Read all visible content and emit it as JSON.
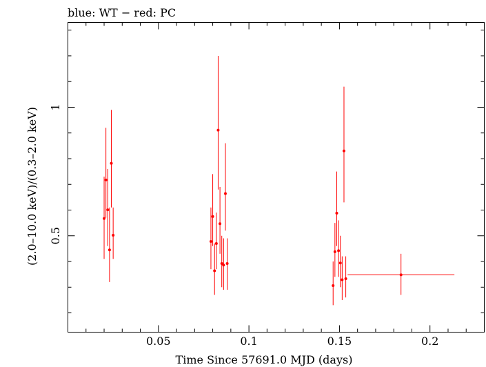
{
  "chart_data": {
    "type": "scatter",
    "title": "blue: WT − red: PC",
    "xlabel": "Time Since 57691.0 MJD (days)",
    "ylabel": "(2.0–10.0 keV)/(0.3–2.0 keV)",
    "xlim": [
      0.0,
      0.23
    ],
    "ylim": [
      0.125,
      1.33
    ],
    "x_ticks": [
      0.05,
      0.1,
      0.15,
      0.2
    ],
    "x_tick_labels": [
      "0.05",
      "0.1",
      "0.15",
      "0.2"
    ],
    "y_ticks": [
      0.5,
      1.0
    ],
    "y_tick_labels": [
      "0.5",
      "1"
    ],
    "grid": false,
    "series": [
      {
        "name": "PC",
        "color": "#ff0000",
        "points": [
          {
            "x": 0.02,
            "y": 0.567,
            "xerr": 0.0004,
            "ylo": 0.41,
            "yhi": 0.73
          },
          {
            "x": 0.021,
            "y": 0.717,
            "xerr": 0.0004,
            "ylo": 0.57,
            "yhi": 0.92
          },
          {
            "x": 0.022,
            "y": 0.601,
            "xerr": 0.0004,
            "ylo": 0.46,
            "yhi": 0.76
          },
          {
            "x": 0.023,
            "y": 0.445,
            "xerr": 0.0004,
            "ylo": 0.32,
            "yhi": 0.61
          },
          {
            "x": 0.024,
            "y": 0.782,
            "xerr": 0.0004,
            "ylo": 0.61,
            "yhi": 0.99
          },
          {
            "x": 0.025,
            "y": 0.502,
            "xerr": 0.0004,
            "ylo": 0.41,
            "yhi": 0.61
          },
          {
            "x": 0.079,
            "y": 0.478,
            "xerr": 0.0004,
            "ylo": 0.37,
            "yhi": 0.61
          },
          {
            "x": 0.08,
            "y": 0.575,
            "xerr": 0.0004,
            "ylo": 0.46,
            "yhi": 0.74
          },
          {
            "x": 0.081,
            "y": 0.364,
            "xerr": 0.0004,
            "ylo": 0.27,
            "yhi": 0.47
          },
          {
            "x": 0.082,
            "y": 0.47,
            "xerr": 0.0004,
            "ylo": 0.37,
            "yhi": 0.59
          },
          {
            "x": 0.083,
            "y": 0.911,
            "xerr": 0.0004,
            "ylo": 0.68,
            "yhi": 1.2
          },
          {
            "x": 0.084,
            "y": 0.547,
            "xerr": 0.0004,
            "ylo": 0.43,
            "yhi": 0.69
          },
          {
            "x": 0.085,
            "y": 0.392,
            "xerr": 0.0004,
            "ylo": 0.3,
            "yhi": 0.5
          },
          {
            "x": 0.086,
            "y": 0.386,
            "xerr": 0.0004,
            "ylo": 0.29,
            "yhi": 0.49
          },
          {
            "x": 0.087,
            "y": 0.664,
            "xerr": 0.0004,
            "ylo": 0.52,
            "yhi": 0.86
          },
          {
            "x": 0.088,
            "y": 0.392,
            "xerr": 0.0004,
            "ylo": 0.29,
            "yhi": 0.49
          },
          {
            "x": 0.1465,
            "y": 0.306,
            "xerr": 0.0004,
            "ylo": 0.23,
            "yhi": 0.4
          },
          {
            "x": 0.1475,
            "y": 0.438,
            "xerr": 0.0004,
            "ylo": 0.34,
            "yhi": 0.55
          },
          {
            "x": 0.1485,
            "y": 0.588,
            "xerr": 0.0004,
            "ylo": 0.46,
            "yhi": 0.75
          },
          {
            "x": 0.1495,
            "y": 0.442,
            "xerr": 0.0004,
            "ylo": 0.34,
            "yhi": 0.56
          },
          {
            "x": 0.1505,
            "y": 0.394,
            "xerr": 0.0004,
            "ylo": 0.3,
            "yhi": 0.5
          },
          {
            "x": 0.1515,
            "y": 0.329,
            "xerr": 0.0004,
            "ylo": 0.25,
            "yhi": 0.42
          },
          {
            "x": 0.1525,
            "y": 0.83,
            "xerr": 0.0004,
            "ylo": 0.63,
            "yhi": 1.08
          },
          {
            "x": 0.1535,
            "y": 0.333,
            "xerr": 0.0004,
            "ylo": 0.26,
            "yhi": 0.42
          },
          {
            "x": 0.184,
            "y": 0.348,
            "xerr": 0.0295,
            "ylo": 0.27,
            "yhi": 0.43
          }
        ]
      }
    ]
  }
}
